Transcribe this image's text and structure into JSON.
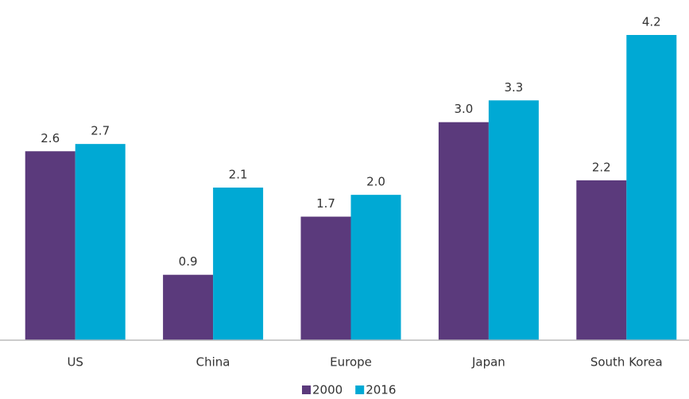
{
  "chart_data": {
    "type": "bar",
    "categories": [
      "US",
      "China",
      "Europe",
      "Japan",
      "South Korea"
    ],
    "series": [
      {
        "name": "2000",
        "color": "#5b3a7c",
        "values": [
          2.6,
          0.9,
          1.7,
          3.0,
          2.2
        ],
        "value_labels": [
          "2.6",
          "0.9",
          "1.7",
          "3.0",
          "2.2"
        ]
      },
      {
        "name": "2016",
        "color": "#00a9d4",
        "values": [
          2.7,
          2.1,
          2.0,
          3.3,
          4.2
        ],
        "value_labels": [
          "2.7",
          "2.1",
          "2.0",
          "3.3",
          "4.2"
        ]
      }
    ],
    "ylim": [
      0,
      4.2
    ],
    "legend": "bottom"
  }
}
